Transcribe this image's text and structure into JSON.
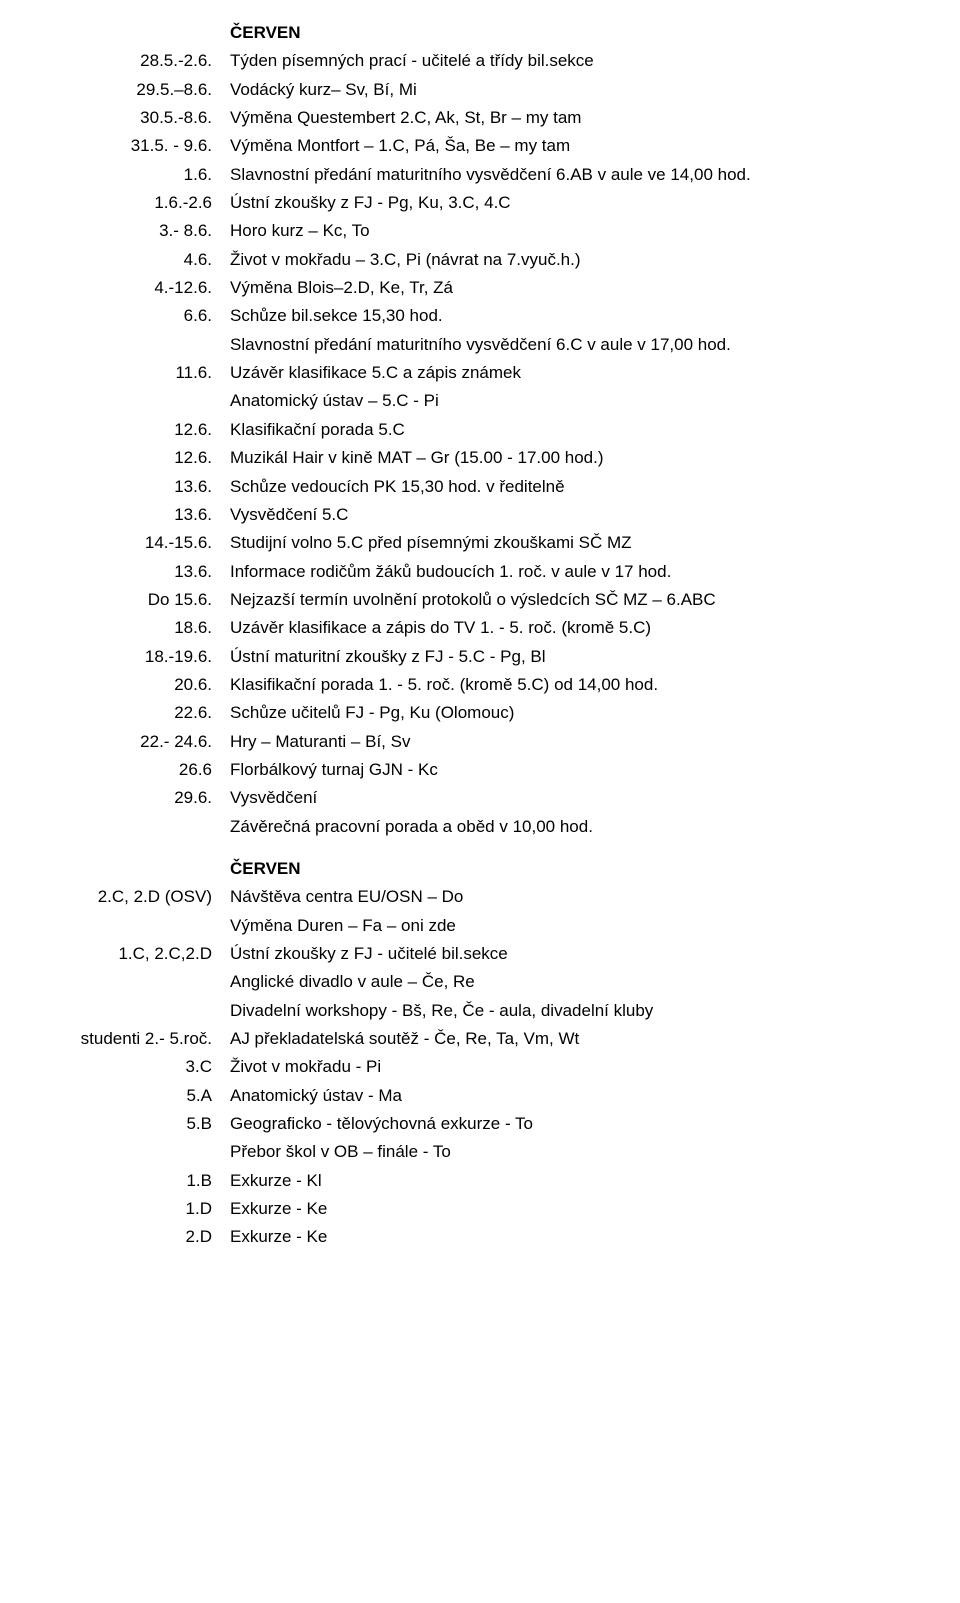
{
  "section1": {
    "heading": "ČERVEN",
    "items": [
      {
        "date": "28.5.-2.6.",
        "text": "Týden písemných prací - učitelé a třídy bil.sekce"
      },
      {
        "date": "29.5.–8.6.",
        "text": "Vodácký kurz– Sv, Bí, Mi"
      },
      {
        "date": "30.5.-8.6.",
        "text": "Výměna Questembert 2.C, Ak, St, Br – my tam"
      },
      {
        "date": "31.5. - 9.6.",
        "text": "Výměna Montfort – 1.C, Pá, Ša, Be – my tam"
      },
      {
        "date": "1.6.",
        "text": "Slavnostní předání maturitního vysvědčení 6.AB v aule ve 14,00 hod."
      },
      {
        "date": "1.6.-2.6",
        "text": "Ústní zkoušky z FJ - Pg, Ku, 3.C, 4.C"
      },
      {
        "date": "3.- 8.6.",
        "text": "Horo kurz – Kc, To"
      },
      {
        "date": "4.6.",
        "text": "Život v mokřadu – 3.C, Pi (návrat na 7.vyuč.h.)"
      },
      {
        "date": "4.-12.6.",
        "text": "Výměna Blois–2.D, Ke, Tr, Zá"
      },
      {
        "date": "6.6.",
        "text": "Schůze bil.sekce 15,30 hod."
      },
      {
        "date": "",
        "text": "Slavnostní předání maturitního vysvědčení 6.C v aule v 17,00 hod."
      },
      {
        "date": "11.6.",
        "text": "Uzávěr klasifikace 5.C a zápis známek"
      },
      {
        "date": "",
        "text": "Anatomický ústav – 5.C - Pi"
      },
      {
        "date": "12.6.",
        "text": "Klasifikační porada 5.C"
      },
      {
        "date": "12.6.",
        "text": "Muzikál Hair v kině MAT – Gr (15.00 - 17.00 hod.)"
      },
      {
        "date": "13.6.",
        "text": "Schůze vedoucích PK 15,30 hod. v ředitelně"
      },
      {
        "date": "13.6.",
        "text": "Vysvědčení 5.C"
      },
      {
        "date": "14.-15.6.",
        "text": "Studijní volno 5.C před písemnými zkouškami SČ MZ"
      },
      {
        "date": "13.6.",
        "text": "Informace rodičům žáků budoucích 1. roč. v aule v 17 hod."
      },
      {
        "date": "Do 15.6.",
        "text": "Nejzazší termín uvolnění protokolů o výsledcích SČ MZ – 6.ABC"
      },
      {
        "date": "18.6.",
        "text": "Uzávěr klasifikace a zápis do TV 1. - 5. roč. (kromě 5.C)"
      },
      {
        "date": "18.-19.6.",
        "text": "Ústní maturitní zkoušky z FJ -  5.C - Pg, Bl"
      },
      {
        "date": "20.6.",
        "text": "Klasifikační porada 1. - 5. roč. (kromě 5.C) od 14,00 hod."
      },
      {
        "date": "22.6.",
        "text": "Schůze učitelů FJ - Pg, Ku (Olomouc)"
      },
      {
        "date": "22.- 24.6.",
        "text": "Hry – Maturanti – Bí, Sv"
      },
      {
        "date": "26.6",
        "text": "Florbálkový turnaj GJN - Kc"
      },
      {
        "date": "29.6.",
        "text": "Vysvědčení"
      },
      {
        "date": "",
        "text": "Závěrečná pracovní porada a oběd v 10,00 hod."
      }
    ]
  },
  "section2": {
    "heading": "ČERVEN",
    "items": [
      {
        "date": "2.C, 2.D (OSV)",
        "text": "Návštěva centra EU/OSN – Do"
      },
      {
        "date": "",
        "text": "Výměna Duren – Fa – oni zde"
      },
      {
        "date": "1.C, 2.C,2.D",
        "text": "Ústní zkoušky z FJ - učitelé bil.sekce"
      },
      {
        "date": "",
        "text": "Anglické divadlo v aule – Če, Re"
      },
      {
        "date": "",
        "text": "Divadelní workshopy - Bš, Re, Če - aula, divadelní kluby"
      },
      {
        "date": "studenti 2.- 5.roč.",
        "text": "AJ překladatelská soutěž - Če, Re, Ta, Vm, Wt"
      },
      {
        "date": "3.C",
        "text": "Život v mokřadu - Pi"
      },
      {
        "date": "5.A",
        "text": "Anatomický ústav - Ma"
      },
      {
        "date": "5.B",
        "text": "Geograficko - tělovýchovná exkurze - To"
      },
      {
        "date": "",
        "text": "Přebor škol v OB – finále - To"
      },
      {
        "date": "1.B",
        "text": "Exkurze - Kl"
      },
      {
        "date": "1.D",
        "text": "Exkurze - Ke"
      },
      {
        "date": "2.D",
        "text": "Exkurze - Ke"
      }
    ]
  }
}
